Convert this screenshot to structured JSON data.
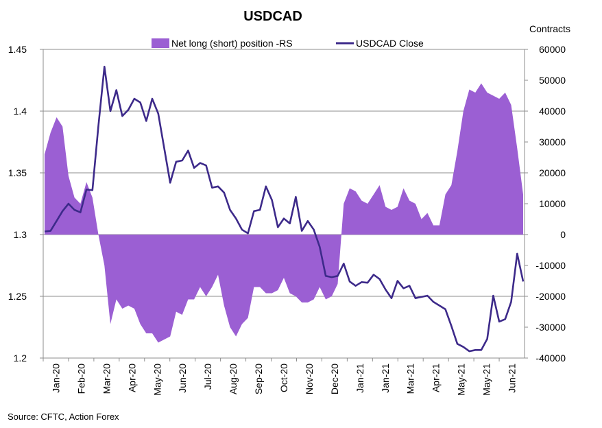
{
  "chart_data": {
    "type": "area+line",
    "title": "USDCAD",
    "right_axis_title": "Contracts",
    "source": "Source: CFTC, Action Forex",
    "left_axis": {
      "min": 1.2,
      "max": 1.45,
      "ticks": [
        "1.2",
        "1.25",
        "1.3",
        "1.35",
        "1.4",
        "1.45"
      ],
      "tick_values": [
        1.2,
        1.25,
        1.3,
        1.35,
        1.4,
        1.45
      ]
    },
    "right_axis": {
      "min": -40000,
      "max": 60000,
      "ticks": [
        "-40000",
        "-30000",
        "-20000",
        "-10000",
        "0",
        "10000",
        "20000",
        "30000",
        "40000",
        "50000",
        "60000"
      ],
      "tick_values": [
        -40000,
        -30000,
        -20000,
        -10000,
        0,
        10000,
        20000,
        30000,
        40000,
        50000,
        60000
      ]
    },
    "x_tick_labels": [
      "Jan-20",
      "Feb-20",
      "Mar-20",
      "Apr-20",
      "May-20",
      "Jun-20",
      "Jul-20",
      "Aug-20",
      "Sep-20",
      "Oct-20",
      "Nov-20",
      "Dec-20",
      "Jan-21",
      "Jan-21",
      "Mar-21",
      "Apr-21",
      "May-21",
      "May-21",
      "Jun-21"
    ],
    "legend": [
      {
        "name": "Net long (short) position -RS",
        "kind": "area",
        "color": "#9b5fd3"
      },
      {
        "name": "USDCAD Close",
        "kind": "line",
        "color": "#3d2a8a"
      }
    ],
    "series": [
      {
        "name": "Net long (short) position -RS",
        "axis": "right",
        "values": [
          26000,
          33000,
          38000,
          35000,
          19000,
          12000,
          10000,
          17000,
          12000,
          0,
          -10000,
          -29000,
          -21000,
          -24000,
          -23000,
          -24000,
          -29000,
          -32000,
          -32000,
          -35000,
          -34000,
          -33000,
          -25000,
          -26000,
          -21000,
          -21000,
          -17000,
          -20000,
          -17000,
          -13000,
          -23000,
          -30000,
          -33000,
          -29000,
          -27000,
          -17000,
          -17000,
          -19000,
          -19000,
          -18000,
          -14000,
          -19000,
          -20000,
          -22000,
          -22000,
          -21000,
          -17000,
          -21000,
          -20000,
          -16000,
          10000,
          15000,
          14000,
          11000,
          10000,
          13000,
          16000,
          9000,
          8000,
          9000,
          15000,
          11000,
          10000,
          5000,
          7000,
          3000,
          3000,
          13000,
          16000,
          27000,
          40000,
          47000,
          46000,
          49000,
          46000,
          45000,
          44000,
          46000,
          42000,
          28000,
          13000
        ]
      },
      {
        "name": "USDCAD Close",
        "axis": "left",
        "values": [
          1.3025,
          1.303,
          1.311,
          1.319,
          1.325,
          1.32,
          1.318,
          1.3365,
          1.336,
          1.388,
          1.436,
          1.4,
          1.417,
          1.396,
          1.401,
          1.41,
          1.407,
          1.392,
          1.41,
          1.398,
          1.37,
          1.342,
          1.359,
          1.36,
          1.368,
          1.354,
          1.358,
          1.356,
          1.338,
          1.339,
          1.334,
          1.32,
          1.313,
          1.304,
          1.301,
          1.319,
          1.32,
          1.339,
          1.328,
          1.306,
          1.313,
          1.309,
          1.3305,
          1.303,
          1.311,
          1.304,
          1.29,
          1.2665,
          1.2655,
          1.2665,
          1.2765,
          1.262,
          1.2585,
          1.2615,
          1.261,
          1.2675,
          1.264,
          1.2555,
          1.2485,
          1.2625,
          1.2565,
          1.2585,
          1.2485,
          1.2495,
          1.2505,
          1.2455,
          1.2425,
          1.2395,
          1.226,
          1.2115,
          1.209,
          1.2055,
          1.2065,
          1.2065,
          1.2155,
          1.2505,
          1.2295,
          1.2315,
          1.2455,
          1.2845,
          1.262
        ]
      }
    ]
  }
}
